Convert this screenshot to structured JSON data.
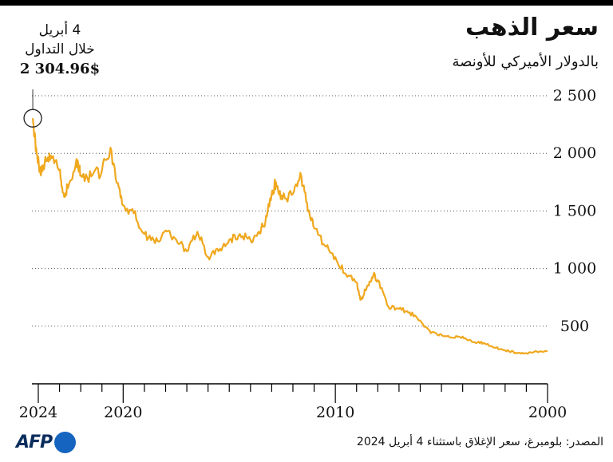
{
  "header": {
    "title": "سعر الذهب",
    "subtitle": "بالدولار الأميركي للأونصة"
  },
  "callout": {
    "date": "4 أبريل",
    "label": "خلال التداول",
    "value": "2 304.96$"
  },
  "footer": {
    "logo_text": "AFP",
    "source": "المصدر: بلومبرغ، سعر الإغلاق باستثناء 4 أبريل 2024"
  },
  "colors": {
    "line": "#f0a81e",
    "grid": "#555555",
    "axis": "#000000",
    "logo": "#1565c0"
  },
  "chart_data": {
    "type": "line",
    "title": "سعر الذهب",
    "subtitle": "بالدولار الأميركي للأونصة",
    "x_direction": "reversed",
    "xlim": [
      2000,
      2024.3
    ],
    "ylim": [
      0,
      2500
    ],
    "x_tick_labels": [
      {
        "value": 2000,
        "label": "2000"
      },
      {
        "value": 2010,
        "label": "2010"
      },
      {
        "value": 2020,
        "label": "2020"
      },
      {
        "value": 2024,
        "label": "2024"
      }
    ],
    "y_tick_labels": [
      {
        "value": 500,
        "label": "500"
      },
      {
        "value": 1000,
        "label": "1 000"
      },
      {
        "value": 1500,
        "label": "1 500"
      },
      {
        "value": 2000,
        "label": "2 000"
      },
      {
        "value": 2500,
        "label": "2 500"
      }
    ],
    "grid": "horizontal-dotted",
    "series": [
      {
        "x": [
          2000.0,
          2000.5,
          2001.0,
          2001.5,
          2002.0,
          2002.5,
          2003.0,
          2003.5,
          2004.0,
          2004.5,
          2005.0,
          2005.5,
          2006.0,
          2006.5,
          2007.0,
          2007.5,
          2008.0,
          2008.2,
          2008.5,
          2008.8,
          2009.0,
          2009.5,
          2010.0,
          2010.5,
          2011.0,
          2011.3,
          2011.6,
          2012.0,
          2012.5,
          2012.8,
          2013.0,
          2013.3,
          2013.6,
          2014.0,
          2014.5,
          2015.0,
          2015.5,
          2016.0,
          2016.5,
          2017.0,
          2017.5,
          2018.0,
          2018.5,
          2019.0,
          2019.5,
          2020.0,
          2020.2,
          2020.6,
          2021.0,
          2021.5,
          2022.0,
          2022.2,
          2022.6,
          2022.8,
          2023.0,
          2023.4,
          2023.7,
          2023.9,
          2024.1,
          2024.26
        ],
        "y": [
          285,
          280,
          265,
          270,
          290,
          315,
          355,
          360,
          410,
          400,
          425,
          440,
          550,
          620,
          650,
          670,
          900,
          950,
          850,
          730,
          880,
          950,
          1100,
          1200,
          1350,
          1500,
          1800,
          1650,
          1600,
          1750,
          1650,
          1400,
          1320,
          1250,
          1300,
          1250,
          1150,
          1100,
          1320,
          1150,
          1250,
          1330,
          1220,
          1300,
          1480,
          1550,
          1700,
          2050,
          1850,
          1800,
          1810,
          1950,
          1700,
          1650,
          1850,
          1980,
          1920,
          1830,
          2050,
          2305
        ]
      }
    ],
    "annotation": {
      "x": 2024.26,
      "y": 2304.96,
      "text": "2 304.96$"
    }
  }
}
